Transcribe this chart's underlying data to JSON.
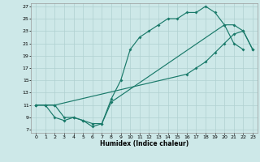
{
  "xlabel": "Humidex (Indice chaleur)",
  "xlim": [
    -0.5,
    23.5
  ],
  "ylim": [
    6.5,
    27.5
  ],
  "xticks": [
    0,
    1,
    2,
    3,
    4,
    5,
    6,
    7,
    8,
    9,
    10,
    11,
    12,
    13,
    14,
    15,
    16,
    17,
    18,
    19,
    20,
    21,
    22,
    23
  ],
  "yticks": [
    7,
    9,
    11,
    13,
    15,
    17,
    19,
    21,
    23,
    25,
    27
  ],
  "bg_color": "#cde8e8",
  "grid_color": "#b0d0d0",
  "line_color": "#1a7a6a",
  "line1_x": [
    0,
    1,
    2,
    3,
    4,
    5,
    6,
    7,
    8,
    9,
    10,
    11,
    12,
    13,
    14,
    15,
    16,
    17,
    18,
    19,
    20,
    21,
    22
  ],
  "line1_y": [
    11,
    11,
    11,
    9,
    9,
    8.5,
    8,
    8,
    12,
    15,
    20,
    22,
    23,
    24,
    25,
    25,
    26,
    26,
    27,
    26,
    24,
    21,
    20
  ],
  "line2_x": [
    0,
    1,
    2,
    3,
    4,
    5,
    6,
    7,
    8,
    20,
    21,
    22,
    23
  ],
  "line2_y": [
    11,
    11,
    9,
    8.5,
    9,
    8.5,
    7.5,
    8,
    11.5,
    24,
    24,
    23,
    20
  ],
  "line3_x": [
    0,
    1,
    2,
    16,
    17,
    18,
    19,
    20,
    21,
    22,
    23
  ],
  "line3_y": [
    11,
    11,
    11,
    16,
    17,
    18,
    19.5,
    21,
    22.5,
    23,
    20
  ]
}
